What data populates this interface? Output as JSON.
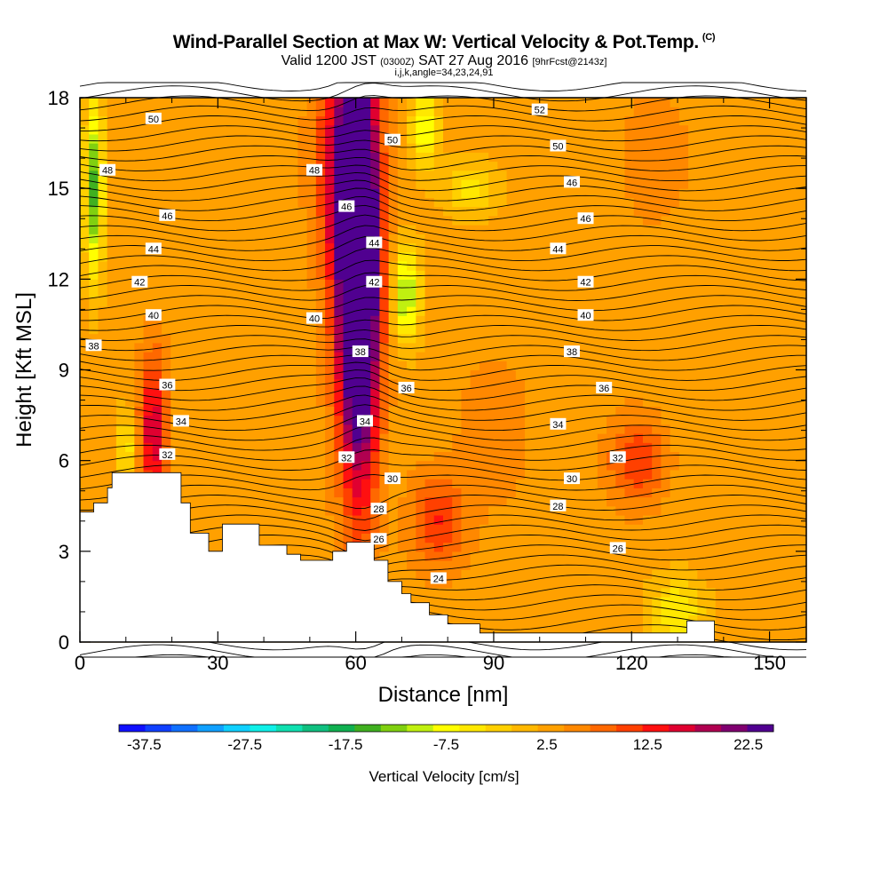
{
  "header": {
    "title": "Wind-Parallel Section at Max W: Vertical Velocity & Pot.Temp.",
    "copyright": "(C)",
    "subtitle_valid": "Valid 1200 JST",
    "subtitle_utc": "(0300Z)",
    "subtitle_date": "SAT 27 Aug 2016",
    "subtitle_fcst": "[9hrFcst@2143z]",
    "meta": "i,j,k,angle=34,23,24,91"
  },
  "chart_data": {
    "type": "heatmap",
    "title": "Wind-Parallel Section at Max W: Vertical Velocity & Pot.Temp.",
    "xlabel": "Distance [nm]",
    "ylabel": "Height [Kft MSL]",
    "xlim": [
      0,
      158
    ],
    "ylim": [
      0,
      18
    ],
    "x_ticks": [
      "0",
      "30",
      "60",
      "90",
      "120",
      "150"
    ],
    "y_ticks": [
      "0",
      "3",
      "6",
      "9",
      "12",
      "15",
      "18"
    ],
    "colorbar": {
      "title": "Vertical Velocity [cm/s]",
      "tick_labels": [
        "-37.5",
        "-27.5",
        "-17.5",
        "-7.5",
        "2.5",
        "12.5",
        "22.5"
      ],
      "min": -40,
      "max": 25,
      "colors": [
        "#1010ff",
        "#1040ff",
        "#1070ff",
        "#10a0ff",
        "#10d0ff",
        "#10f0e8",
        "#10e0b0",
        "#10c080",
        "#10b050",
        "#40b020",
        "#80d010",
        "#c0f010",
        "#ffff00",
        "#ffe800",
        "#ffd000",
        "#ffb800",
        "#ffa000",
        "#ff8800",
        "#ff6800",
        "#ff4000",
        "#ff1010",
        "#e00030",
        "#b00050",
        "#800070",
        "#500090"
      ]
    },
    "background_value": 3,
    "updraft_features": [
      {
        "x": 60,
        "y": 12.5,
        "value": 24,
        "note": "main core 45-65 nm, 6-18 Kft"
      },
      {
        "x": 57,
        "y": 16,
        "value": 14
      },
      {
        "x": 16,
        "y": 7,
        "value": 17
      },
      {
        "x": 78,
        "y": 4,
        "value": 12
      },
      {
        "x": 121,
        "y": 6,
        "value": 12
      },
      {
        "x": 90,
        "y": 7,
        "value": 6
      },
      {
        "x": 125,
        "y": 16,
        "value": 5
      }
    ],
    "downdraft_features": [
      {
        "x": 3,
        "y": 15,
        "value": -15
      },
      {
        "x": 71,
        "y": 11.5,
        "value": -12
      },
      {
        "x": 75,
        "y": 17,
        "value": -9
      },
      {
        "x": 10,
        "y": 6.5,
        "value": -6
      },
      {
        "x": 130,
        "y": 1,
        "value": -6
      },
      {
        "x": 85,
        "y": 15,
        "value": -4
      }
    ],
    "terrain_heights_kft": [
      [
        0,
        4.3
      ],
      [
        3,
        4.3
      ],
      [
        3,
        4.6
      ],
      [
        6,
        4.6
      ],
      [
        6,
        5.1
      ],
      [
        7,
        5.1
      ],
      [
        7,
        5.6
      ],
      [
        22,
        5.6
      ],
      [
        22,
        4.6
      ],
      [
        24,
        4.6
      ],
      [
        24,
        3.6
      ],
      [
        28,
        3.6
      ],
      [
        28,
        3.0
      ],
      [
        31,
        3.0
      ],
      [
        31,
        3.9
      ],
      [
        39,
        3.9
      ],
      [
        39,
        3.2
      ],
      [
        45,
        3.2
      ],
      [
        45,
        2.9
      ],
      [
        48,
        2.9
      ],
      [
        48,
        2.7
      ],
      [
        55,
        2.7
      ],
      [
        55,
        3.0
      ],
      [
        58,
        3.0
      ],
      [
        58,
        3.3
      ],
      [
        64,
        3.3
      ],
      [
        64,
        2.7
      ],
      [
        67,
        2.7
      ],
      [
        67,
        2.0
      ],
      [
        70,
        2.0
      ],
      [
        70,
        1.6
      ],
      [
        72,
        1.6
      ],
      [
        72,
        1.3
      ],
      [
        76,
        1.3
      ],
      [
        76,
        0.9
      ],
      [
        80,
        0.9
      ],
      [
        80,
        0.6
      ],
      [
        87,
        0.6
      ],
      [
        87,
        0.3
      ],
      [
        132,
        0.3
      ],
      [
        132,
        0.7
      ],
      [
        138,
        0.7
      ],
      [
        138,
        0
      ],
      [
        158,
        0
      ],
      [
        0,
        0
      ]
    ],
    "isentropes_K_labels": [
      "24",
      "26",
      "28",
      "30",
      "32",
      "34",
      "36",
      "38",
      "40",
      "42",
      "44",
      "46",
      "48",
      "50",
      "52"
    ],
    "isentrope_label_positions": [
      {
        "label": "50",
        "x": 16,
        "y": 17.3
      },
      {
        "label": "48",
        "x": 6,
        "y": 15.6
      },
      {
        "label": "46",
        "x": 19,
        "y": 14.1
      },
      {
        "label": "44",
        "x": 16,
        "y": 13.0
      },
      {
        "label": "42",
        "x": 13,
        "y": 11.9
      },
      {
        "label": "40",
        "x": 16,
        "y": 10.8
      },
      {
        "label": "38",
        "x": 3,
        "y": 9.8
      },
      {
        "label": "36",
        "x": 19,
        "y": 8.5
      },
      {
        "label": "34",
        "x": 22,
        "y": 7.3
      },
      {
        "label": "32",
        "x": 19,
        "y": 6.2
      },
      {
        "label": "48",
        "x": 51,
        "y": 15.6
      },
      {
        "label": "46",
        "x": 58,
        "y": 14.4
      },
      {
        "label": "44",
        "x": 64,
        "y": 13.2
      },
      {
        "label": "42",
        "x": 64,
        "y": 11.9
      },
      {
        "label": "40",
        "x": 51,
        "y": 10.7
      },
      {
        "label": "38",
        "x": 61,
        "y": 9.6
      },
      {
        "label": "34",
        "x": 62,
        "y": 7.3
      },
      {
        "label": "32",
        "x": 58,
        "y": 6.1
      },
      {
        "label": "30",
        "x": 68,
        "y": 5.4
      },
      {
        "label": "28",
        "x": 65,
        "y": 4.4
      },
      {
        "label": "26",
        "x": 65,
        "y": 3.4
      },
      {
        "label": "24",
        "x": 78,
        "y": 2.1
      },
      {
        "label": "50",
        "x": 68,
        "y": 16.6
      },
      {
        "label": "36",
        "x": 71,
        "y": 8.4
      },
      {
        "label": "52",
        "x": 100,
        "y": 17.6
      },
      {
        "label": "50",
        "x": 104,
        "y": 16.4
      },
      {
        "label": "46",
        "x": 107,
        "y": 15.2
      },
      {
        "label": "46",
        "x": 110,
        "y": 14.0
      },
      {
        "label": "44",
        "x": 104,
        "y": 13.0
      },
      {
        "label": "42",
        "x": 110,
        "y": 11.9
      },
      {
        "label": "40",
        "x": 110,
        "y": 10.8
      },
      {
        "label": "38",
        "x": 107,
        "y": 9.6
      },
      {
        "label": "36",
        "x": 114,
        "y": 8.4
      },
      {
        "label": "34",
        "x": 104,
        "y": 7.2
      },
      {
        "label": "32",
        "x": 117,
        "y": 6.1
      },
      {
        "label": "30",
        "x": 107,
        "y": 5.4
      },
      {
        "label": "28",
        "x": 104,
        "y": 4.5
      },
      {
        "label": "26",
        "x": 117,
        "y": 3.1
      }
    ]
  }
}
